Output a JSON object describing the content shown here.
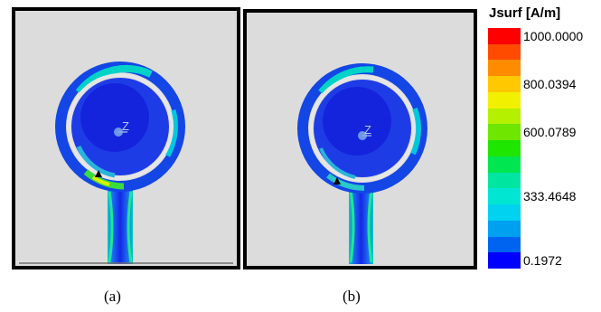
{
  "legend": {
    "title": "Jsurf [A/m]",
    "colors": [
      "#ff0000",
      "#ff4b00",
      "#ff8c00",
      "#ffc800",
      "#f0f000",
      "#b4f000",
      "#6ee600",
      "#1ee600",
      "#00e650",
      "#00e6a0",
      "#00e6d2",
      "#00d2f0",
      "#00a0f0",
      "#0064f0",
      "#0000ff"
    ],
    "ticks": [
      {
        "label": "1000.0000",
        "index": 0
      },
      {
        "label": "800.0394",
        "index": 3
      },
      {
        "label": "600.0789",
        "index": 6
      },
      {
        "label": "333.4648",
        "index": 10
      },
      {
        "label": "0.1972",
        "index": 14
      }
    ]
  },
  "panels": [
    {
      "caption": "(a)",
      "axis_label": "Z"
    },
    {
      "caption": "(b)",
      "axis_label": "Z"
    }
  ]
}
